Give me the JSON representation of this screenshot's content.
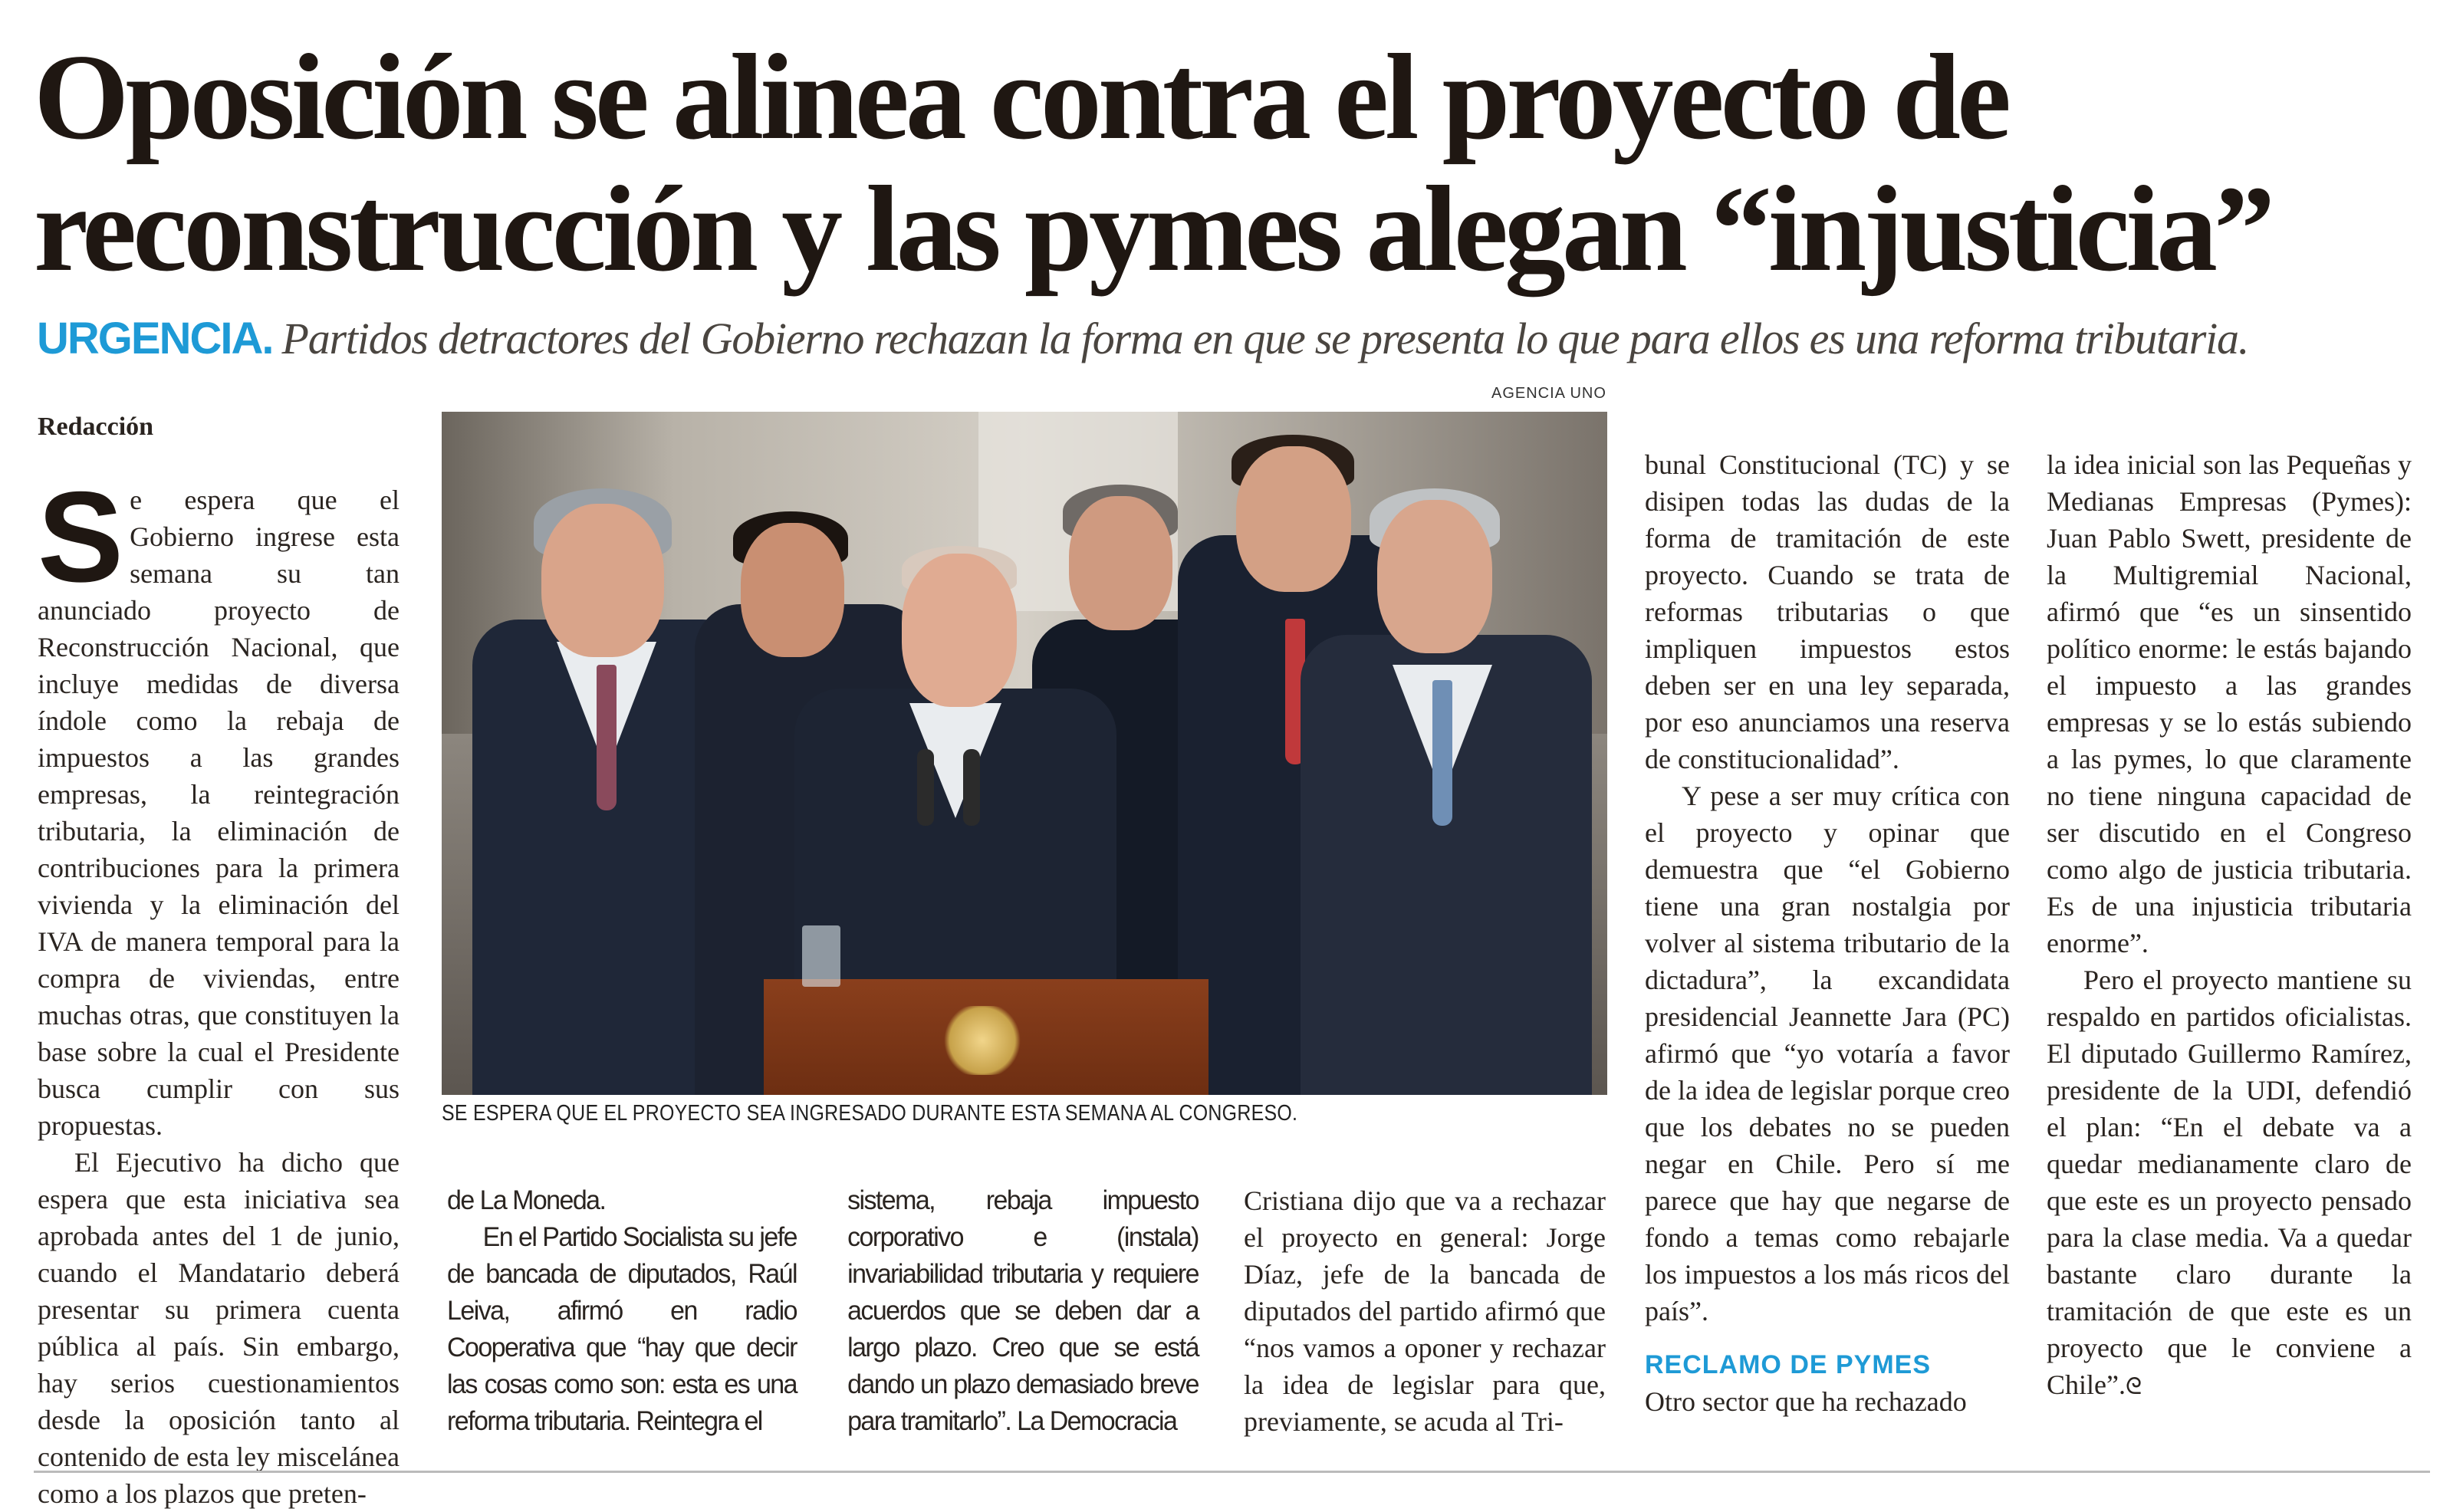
{
  "headline": "Oposición se alinea contra el proyecto de reconstrucción y las pymes alegan “injusticia”",
  "deck": {
    "kicker": "URGENCIA.",
    "text": "Partidos detractores del Gobierno rechazan la forma en que se presenta lo que para ellos es una reforma tributaria."
  },
  "photo": {
    "credit": "AGENCIA UNO",
    "caption": "SE ESPERA QUE EL PROYECTO SEA INGRESADO DURANTE ESTA SEMANA AL CONGRESO."
  },
  "byline": "Redacción",
  "colors": {
    "accent": "#1e9ad6",
    "text": "#1f1712"
  },
  "columns": {
    "c1": {
      "dropcap": "S",
      "p1": "e espera que el Gobierno ingrese esta semana su tan anunciado proyecto de Reconstrucción Nacional, que incluye medidas de diversa índole como la rebaja de impuestos a las grandes empresas, la reintegración tributaria, la eliminación de contribuciones para la primera vivienda y la eliminación del IVA de manera temporal para la compra de viviendas, entre muchas otras, que constituyen la base sobre la cual el Presidente busca cumplir con sus propuestas.",
      "p2": "El Ejecutivo ha dicho que espera que esta iniciativa sea aprobada antes del 1 de junio, cuando el Mandatario deberá presentar su primera cuenta pública al país. Sin embargo, hay serios cuestionamientos desde la oposición tanto al contenido de esta ley miscelánea como a los plazos que preten-"
    },
    "c2": {
      "p1": "de La Moneda.",
      "p2": "En el Partido Socialista su jefe de bancada de diputados, Raúl Leiva, afirmó en radio Cooperativa que “hay que decir las cosas como son: esta es una reforma tributaria. Reintegra el"
    },
    "c3": {
      "p1": "sistema, rebaja impuesto corporativo e (instala) invariabilidad tributaria y requiere acuerdos que se deben dar a largo plazo. Creo que se está dando un plazo demasiado breve para tramitarlo”. La Democracia"
    },
    "c4": {
      "p1": "Cristiana dijo que va a rechazar el proyecto en general: Jorge Díaz, jefe de la bancada de diputados del partido afirmó que “nos vamos a oponer y rechazar la idea de legislar para que, previamente, se acuda al Tri-"
    },
    "c5": {
      "p1": "bunal Constitucional (TC) y se disipen todas las dudas de la forma de tramitación de este proyecto. Cuando se trata de reformas tributarias o que impliquen impuestos estos deben ser en una ley separada, por eso anunciamos una reserva de constitucionalidad”.",
      "p2": "Y pese a ser muy crítica con el proyecto y opinar que demuestra que “el Gobierno tiene una gran nostalgia por volver al sistema tributario de la dictadura”, la excandidata presidencial Jeannette Jara (PC) afirmó que “yo votaría a favor de la idea de legislar porque creo que los debates no se pueden negar en Chile. Pero sí me parece que hay que negarse de fondo a temas como rebajarle los impuestos a los más ricos del país”.",
      "subhead": "RECLAMO DE PYMES",
      "p3": "Otro sector que ha rechazado"
    },
    "c6": {
      "p1": "la idea inicial son las Pequeñas y Medianas Empresas (Pymes): Juan Pablo Swett, presidente de la Multigremial Nacional, afirmó que “es un sinsentido político enorme: le estás bajando el impuesto a las grandes empresas y se lo estás subiendo a las pymes, lo que claramente no tiene ninguna capacidad de ser discutido en el Congreso como algo de justicia tributaria. Es de una injusticia tributaria enorme”.",
      "p2": "Pero el proyecto mantiene su respaldo en partidos oficialistas. El diputado Guillermo Ramírez, presidente de la UDI, defendió el plan: “En el debate va a quedar medianamente claro de que este es un proyecto pensado para la clase media. Va a quedar bastante claro durante la tramitación de que este es un proyecto que le conviene a Chile”.",
      "endmark": "ᘓ"
    }
  }
}
